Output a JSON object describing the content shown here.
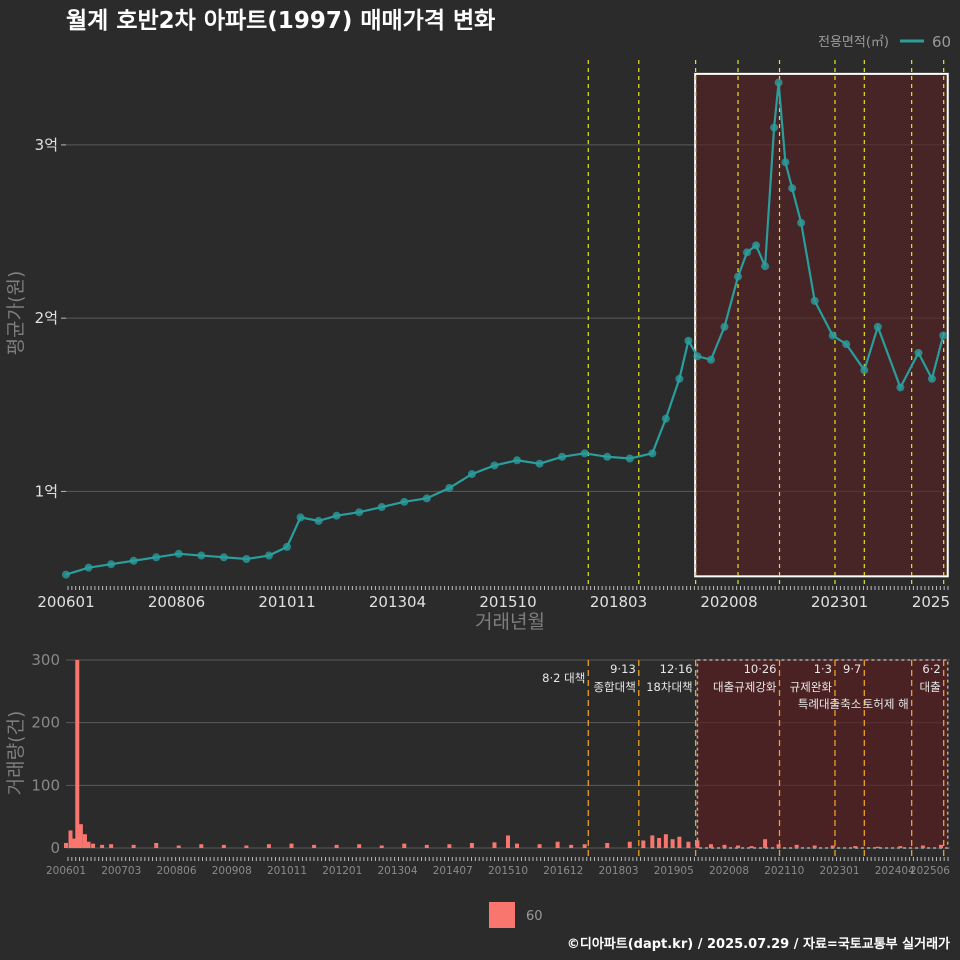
{
  "title": "월계 호반2차 아파트(1997) 매매가격 변화",
  "legend_top": {
    "title": "전용면적(㎡)",
    "entry": "60",
    "color": "#2a9d9d"
  },
  "legend_bottom": {
    "entry": "60",
    "color": "#f8766d"
  },
  "caption": "©디아파트(dapt.kr) / 2025.07.29 / 자료=국토교통부 실거래가",
  "chart_data": [
    {
      "type": "line",
      "xlabel": "거래년월",
      "ylabel": "평균가(원)",
      "x_tick_labels": [
        "200601",
        "200806",
        "201011",
        "201304",
        "201510",
        "201803",
        "202008",
        "202301",
        "2025"
      ],
      "y_tick_labels": [
        "1억",
        "2억",
        "3억"
      ],
      "y_tick_values": [
        10000,
        20000,
        30000
      ],
      "ylim": [
        4600,
        34900
      ],
      "xlim": [
        2006.0,
        2025.6
      ],
      "highlight_range": [
        2019.95,
        2025.55
      ],
      "policy_lines": [
        2017.58,
        2018.7,
        2019.96,
        2020.9,
        2021.82,
        2023.05,
        2023.7,
        2024.75,
        2025.46
      ],
      "series": [
        {
          "name": "60",
          "color": "#2a9d9d",
          "x": [
            2006.0,
            2006.5,
            2007.0,
            2007.5,
            2008.0,
            2008.5,
            2009.0,
            2009.5,
            2010.0,
            2010.5,
            2010.9,
            2011.2,
            2011.6,
            2012.0,
            2012.5,
            2013.0,
            2013.5,
            2014.0,
            2014.5,
            2015.0,
            2015.5,
            2016.0,
            2016.5,
            2017.0,
            2017.5,
            2018.0,
            2018.5,
            2019.0,
            2019.3,
            2019.6,
            2019.8,
            2020.0,
            2020.3,
            2020.6,
            2020.9,
            2021.1,
            2021.3,
            2021.5,
            2021.7,
            2021.8,
            2021.95,
            2022.1,
            2022.3,
            2022.6,
            2023.0,
            2023.3,
            2023.7,
            2024.0,
            2024.5,
            2024.9,
            2025.2,
            2025.45
          ],
          "values": [
            5200,
            5600,
            5800,
            6000,
            6200,
            6400,
            6300,
            6200,
            6100,
            6300,
            6800,
            8500,
            8300,
            8600,
            8800,
            9100,
            9400,
            9600,
            10200,
            11000,
            11500,
            11800,
            11600,
            12000,
            12200,
            12000,
            11900,
            12200,
            14200,
            16500,
            18700,
            17800,
            17600,
            19500,
            22400,
            23800,
            24200,
            23000,
            31000,
            33600,
            29000,
            27500,
            25500,
            21000,
            19000,
            18500,
            17000,
            19500,
            16000,
            18000,
            16500,
            19000
          ]
        }
      ]
    },
    {
      "type": "bar",
      "xlabel": "",
      "ylabel": "거래량(건)",
      "y_tick_labels": [
        "0",
        "100",
        "200",
        "300"
      ],
      "y_tick_values": [
        0,
        100,
        200,
        300
      ],
      "ylim": [
        0,
        300
      ],
      "x_tick_labels": [
        "200601",
        "200703",
        "200806",
        "200908",
        "201011",
        "201201",
        "201304",
        "201407",
        "201510",
        "201612",
        "201803",
        "201905",
        "202008",
        "202110",
        "202301",
        "202404",
        "202506"
      ],
      "highlight_range": [
        2020.0,
        2025.55
      ],
      "annotations": [
        {
          "x": 2017.58,
          "date": "",
          "label": "8·2 대책"
        },
        {
          "x": 2018.7,
          "date": "9·13",
          "label": "종합대책"
        },
        {
          "x": 2019.96,
          "date": "12·16",
          "label": "18차대책"
        },
        {
          "x": 2021.82,
          "date": "10·26",
          "label": "대출규제강화"
        },
        {
          "x": 2023.05,
          "date": "1·3",
          "label": "규제완화"
        },
        {
          "x": 2023.7,
          "date": "9·7",
          "label": "특례대출축소"
        },
        {
          "x": 2024.75,
          "date": "",
          "label": "토허제 해"
        },
        {
          "x": 2025.46,
          "date": "6·2",
          "label": "대출"
        }
      ],
      "x": [
        2006.0,
        2006.1,
        2006.17,
        2006.25,
        2006.33,
        2006.42,
        2006.5,
        2006.6,
        2006.8,
        2007.0,
        2007.5,
        2008.0,
        2008.5,
        2009.0,
        2009.5,
        2010.0,
        2010.5,
        2011.0,
        2011.5,
        2012.0,
        2012.5,
        2013.0,
        2013.5,
        2014.0,
        2014.5,
        2015.0,
        2015.5,
        2015.8,
        2016.0,
        2016.5,
        2016.9,
        2017.2,
        2017.5,
        2018.0,
        2018.5,
        2018.8,
        2019.0,
        2019.15,
        2019.3,
        2019.45,
        2019.6,
        2019.8,
        2020.0,
        2020.3,
        2020.6,
        2020.9,
        2021.2,
        2021.5,
        2021.8,
        2022.2,
        2022.6,
        2023.0,
        2023.5,
        2024.0,
        2024.5,
        2025.0,
        2025.4
      ],
      "values": [
        8,
        28,
        15,
        300,
        38,
        22,
        10,
        7,
        5,
        6,
        5,
        8,
        4,
        6,
        5,
        4,
        6,
        7,
        5,
        5,
        6,
        4,
        7,
        5,
        6,
        8,
        9,
        20,
        7,
        6,
        10,
        5,
        6,
        8,
        10,
        12,
        20,
        16,
        22,
        14,
        18,
        10,
        12,
        6,
        5,
        4,
        3,
        14,
        6,
        5,
        4,
        4,
        3,
        2,
        3,
        4,
        5
      ]
    }
  ]
}
